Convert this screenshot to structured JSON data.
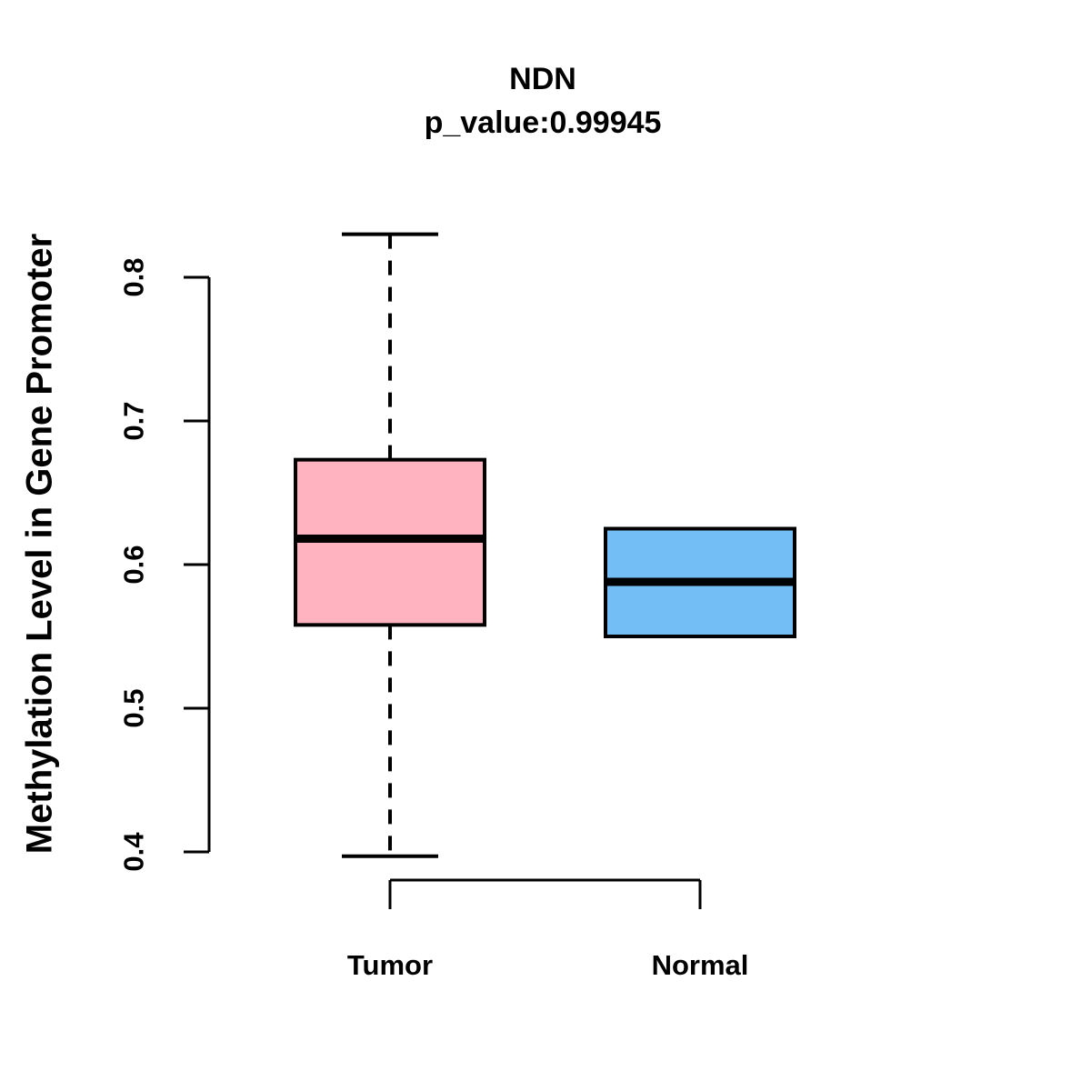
{
  "chart": {
    "title": "NDN",
    "subtitle": "p_value:0.99945",
    "ylabel": "Methylation Level in Gene Promoter"
  },
  "chart_data": {
    "type": "boxplot",
    "title": "NDN",
    "subtitle": "p_value:0.99945",
    "ylabel": "Methylation Level in Gene Promoter",
    "xlabel": "",
    "categories": [
      "Tumor",
      "Normal"
    ],
    "series": [
      {
        "name": "Tumor",
        "color": "#FFB3C1",
        "q1": 0.558,
        "median": 0.618,
        "q3": 0.673,
        "whisker_low": 0.397,
        "whisker_high": 0.83
      },
      {
        "name": "Normal",
        "color": "#74BEF6",
        "q1": 0.55,
        "median": 0.588,
        "q3": 0.625,
        "whisker_low": 0.55,
        "whisker_high": 0.625
      }
    ],
    "ytick_values": [
      0.4,
      0.5,
      0.6,
      0.7,
      0.8
    ],
    "ytick_labels": [
      "0.4",
      "0.5",
      "0.6",
      "0.7",
      "0.8"
    ],
    "ylim": [
      0.4,
      0.83
    ],
    "grid": false,
    "legend": null
  },
  "colors": {
    "stroke": "#000000",
    "background": "#FFFFFF",
    "box_tumor": "#FFB3C1",
    "box_normal": "#74BEF6"
  }
}
